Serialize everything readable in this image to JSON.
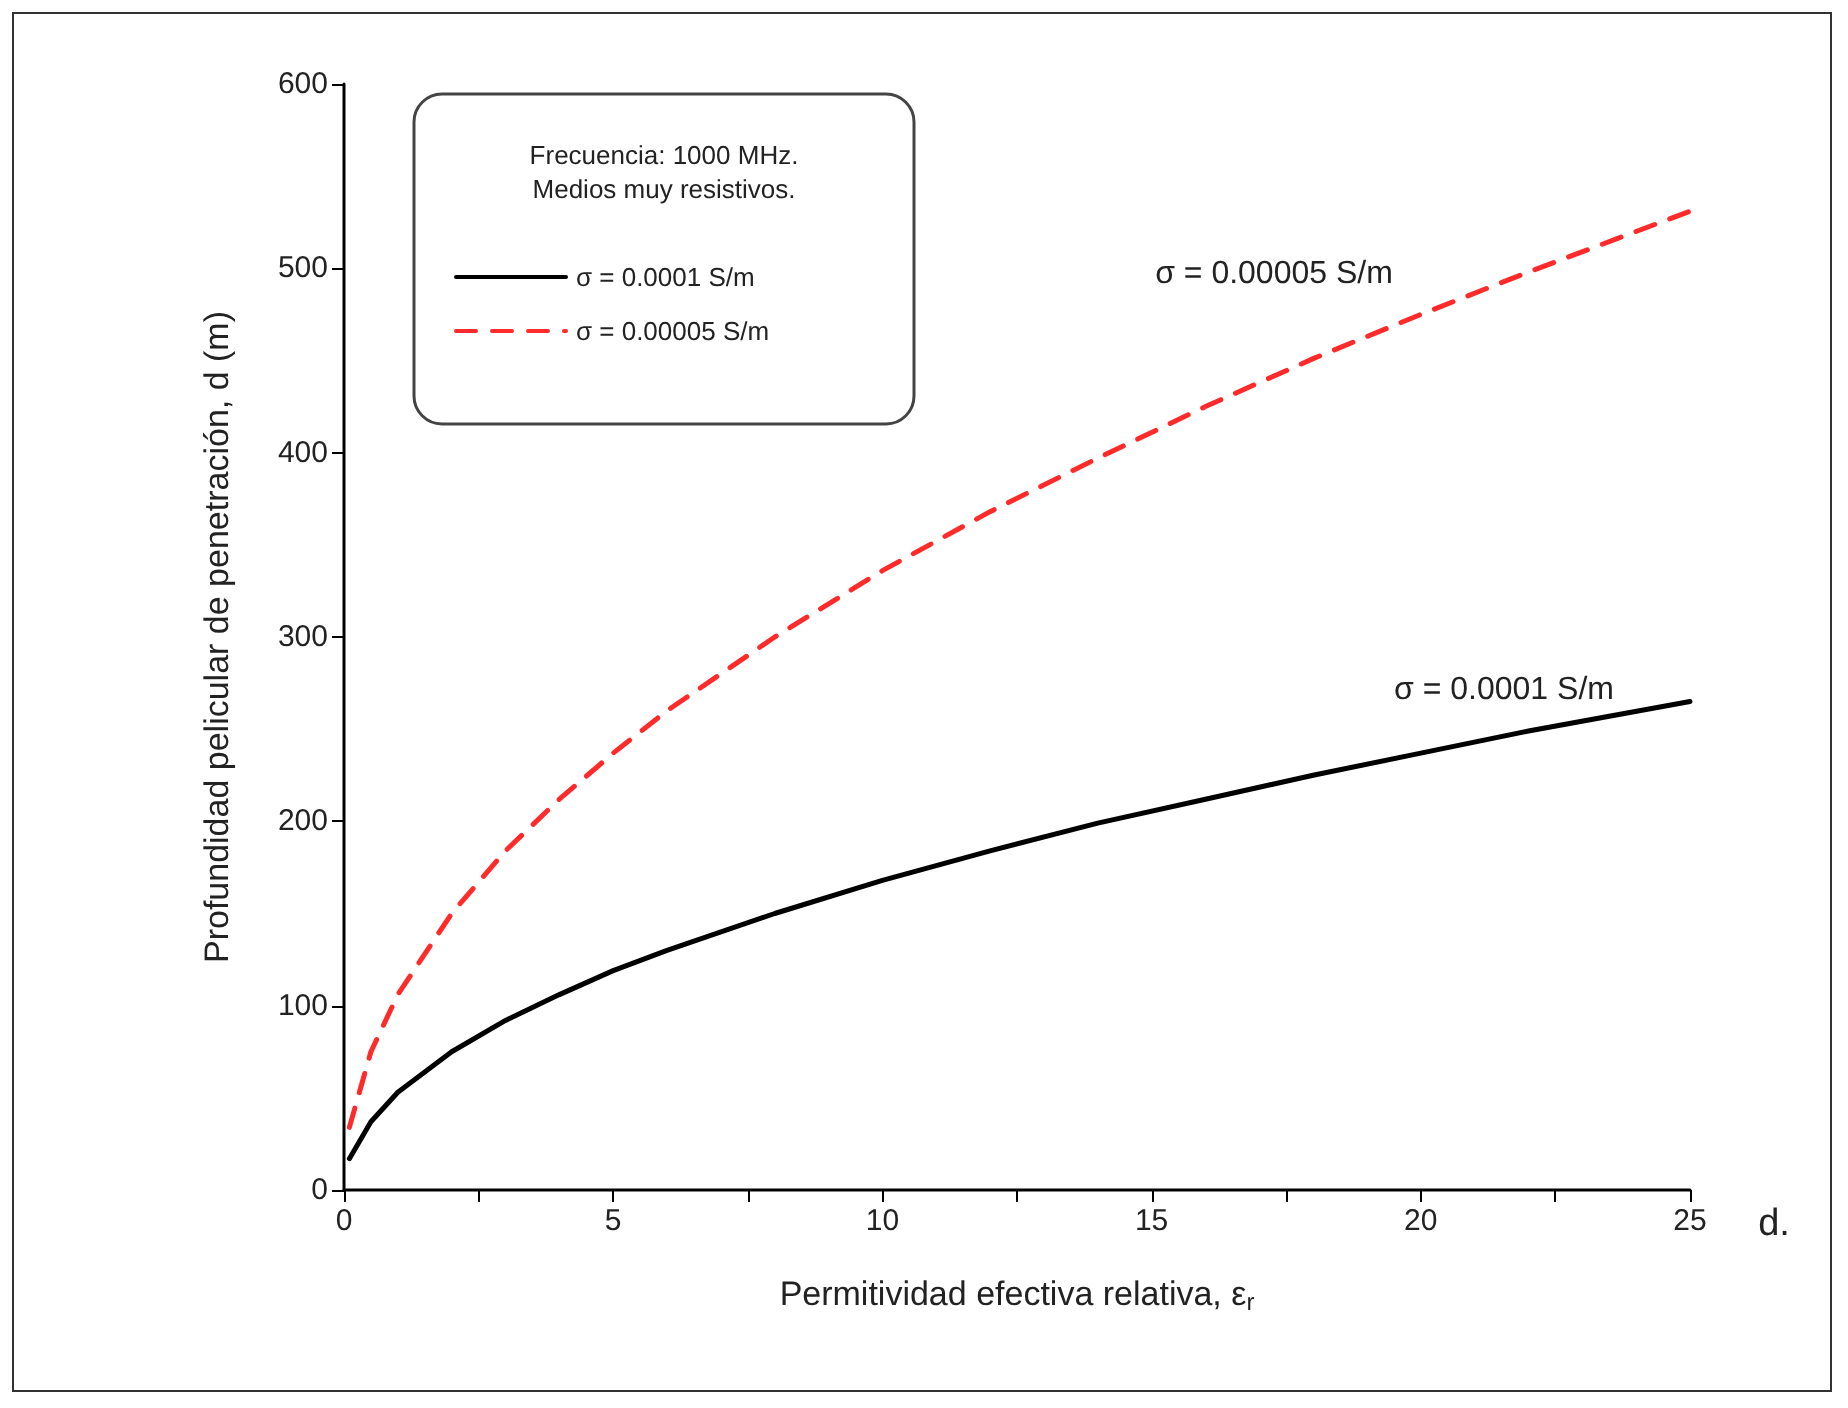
{
  "chart_data": {
    "type": "line",
    "xlabel": "Permitividad efectiva relativa, ε$_{r}$",
    "ylabel": "Profundidad pelicular de penetración, d (m)",
    "legend_title": "Frecuencia: 1000 MHz.\nMedios muy resistivos.",
    "legend": "top left",
    "grid": false,
    "marker": "none",
    "x": [
      0.1,
      0.5,
      1,
      2,
      3,
      4,
      5,
      6,
      8,
      10,
      12,
      14,
      16,
      18,
      20,
      22,
      25
    ],
    "series": [
      {
        "name": "σ = 0.0001 S/m",
        "color": "#000000",
        "line_style": "solid",
        "values": [
          17,
          37,
          53,
          75,
          92,
          106,
          119,
          130,
          150,
          168,
          184,
          199,
          212,
          225,
          237,
          249,
          265
        ]
      },
      {
        "name": "σ = 0.00005 S/m",
        "color": "#ff2a2a",
        "line_style": "dashed",
        "values": [
          34,
          75,
          106,
          150,
          184,
          212,
          237,
          260,
          300,
          336,
          368,
          397,
          425,
          451,
          475,
          498,
          531
        ]
      }
    ],
    "xlim": [
      0,
      25
    ],
    "xticks": [
      0,
      {
        "value": 2.5,
        "label": null
      },
      5,
      {
        "value": 7.5,
        "label": null
      },
      10,
      {
        "value": 12.5,
        "label": null
      },
      15,
      {
        "value": 17.5,
        "label": null
      },
      20,
      {
        "value": 22.5,
        "label": null
      },
      25
    ],
    "ylim": [
      0,
      600
    ],
    "yticks": [
      0,
      100,
      200,
      300,
      400,
      500,
      600
    ],
    "annotations": [
      "σ = 0.00005 S/m",
      "σ = 0.0001 S/m",
      "d."
    ]
  }
}
